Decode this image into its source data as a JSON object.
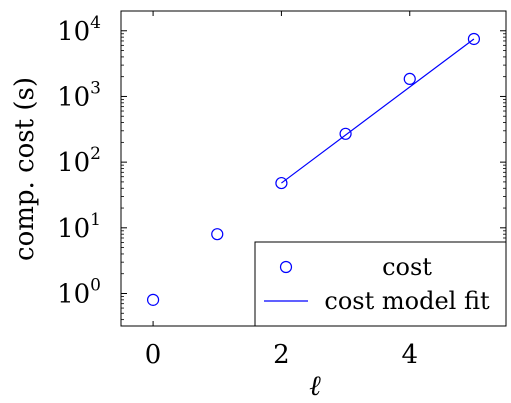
{
  "chart_data": {
    "type": "scatter",
    "xlabel": "ℓ",
    "ylabel": "comp. cost (s)",
    "xlim": [
      -0.5,
      5.5
    ],
    "ylim": [
      0.32,
      20000
    ],
    "yscale": "log",
    "grid": false,
    "x_ticks": [
      {
        "value": 0,
        "label": "0"
      },
      {
        "value": 2,
        "label": "2"
      },
      {
        "value": 4,
        "label": "4"
      }
    ],
    "y_ticks": [
      {
        "value": 1,
        "base": "10",
        "exp": "0"
      },
      {
        "value": 10,
        "base": "10",
        "exp": "1"
      },
      {
        "value": 100,
        "base": "10",
        "exp": "2"
      },
      {
        "value": 1000,
        "base": "10",
        "exp": "3"
      },
      {
        "value": 10000,
        "base": "10",
        "exp": "4"
      }
    ],
    "legend_position": "bottom-right",
    "series": [
      {
        "name": "cost",
        "kind": "markers",
        "marker": "circle",
        "color": "#0000ff",
        "x": [
          0,
          1,
          2,
          3,
          4,
          5
        ],
        "y": [
          0.8,
          8,
          48,
          270,
          1850,
          7500
        ]
      },
      {
        "name": "cost model fit",
        "kind": "line",
        "color": "#0000ff",
        "x": [
          2,
          5
        ],
        "y": [
          48,
          7500
        ]
      }
    ]
  }
}
